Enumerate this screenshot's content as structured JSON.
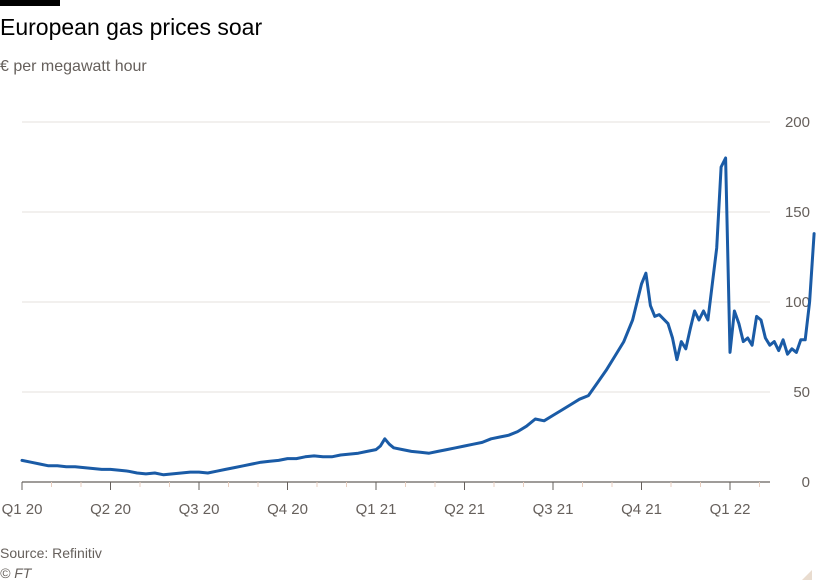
{
  "header": {
    "title": "European gas prices soar",
    "subtitle": "€ per megawatt hour"
  },
  "footer": {
    "source": "Source: Refinitiv",
    "credit": "© FT"
  },
  "colors": {
    "line": "#1a5ba6",
    "grid": "#e6e1dc",
    "axis": "#66605c",
    "ticks": "#e9cfc0"
  },
  "chart_data": {
    "type": "line",
    "title": "European gas prices soar",
    "ylabel": "€ per megawatt hour",
    "ylim": [
      0,
      200
    ],
    "yticks": [
      0,
      50,
      100,
      150,
      200
    ],
    "xlim": [
      0,
      9.35
    ],
    "xticks": [
      {
        "pos": 0,
        "label": "Q1 20"
      },
      {
        "pos": 1,
        "label": "Q2 20"
      },
      {
        "pos": 2,
        "label": "Q3 20"
      },
      {
        "pos": 3,
        "label": "Q4 20"
      },
      {
        "pos": 4,
        "label": "Q1 21"
      },
      {
        "pos": 5,
        "label": "Q2 21"
      },
      {
        "pos": 6,
        "label": "Q3 21"
      },
      {
        "pos": 7,
        "label": "Q4 21"
      },
      {
        "pos": 8,
        "label": "Q1 22"
      }
    ],
    "series": [
      {
        "name": "European gas price",
        "x": [
          0,
          0.1,
          0.2,
          0.3,
          0.4,
          0.5,
          0.6,
          0.7,
          0.8,
          0.9,
          1.0,
          1.1,
          1.2,
          1.3,
          1.4,
          1.5,
          1.6,
          1.7,
          1.8,
          1.9,
          2.0,
          2.1,
          2.2,
          2.3,
          2.4,
          2.5,
          2.6,
          2.7,
          2.8,
          2.9,
          3.0,
          3.1,
          3.2,
          3.3,
          3.4,
          3.5,
          3.6,
          3.7,
          3.8,
          3.9,
          4.0,
          4.05,
          4.1,
          4.15,
          4.2,
          4.3,
          4.4,
          4.5,
          4.6,
          4.7,
          4.8,
          4.9,
          5.0,
          5.1,
          5.2,
          5.3,
          5.4,
          5.5,
          5.6,
          5.7,
          5.8,
          5.9,
          6.0,
          6.1,
          6.2,
          6.3,
          6.4,
          6.5,
          6.6,
          6.7,
          6.8,
          6.9,
          7.0,
          7.05,
          7.1,
          7.15,
          7.2,
          7.3,
          7.35,
          7.4,
          7.45,
          7.5,
          7.55,
          7.6,
          7.65,
          7.7,
          7.75,
          7.8,
          7.85,
          7.9,
          7.95,
          8.0,
          8.05,
          8.1,
          8.15,
          8.2,
          8.25,
          8.3,
          8.35,
          8.4,
          8.45,
          8.5,
          8.55,
          8.6,
          8.65,
          8.7,
          8.75,
          8.8,
          8.85,
          8.9,
          8.95
        ],
        "values": [
          12,
          11,
          10,
          9,
          9,
          8.5,
          8.5,
          8,
          7.5,
          7,
          7,
          6.5,
          6,
          5,
          4.5,
          5,
          4,
          4.5,
          5,
          5.5,
          5.5,
          5,
          6,
          7,
          8,
          9,
          10,
          11,
          11.5,
          12,
          13,
          13,
          14,
          14.5,
          14,
          14,
          15,
          15.5,
          16,
          17,
          18,
          20,
          24,
          21,
          19,
          18,
          17,
          16.5,
          16,
          17,
          18,
          19,
          20,
          21,
          22,
          24,
          25,
          26,
          28,
          31,
          35,
          34,
          37,
          40,
          43,
          46,
          48,
          55,
          62,
          70,
          78,
          90,
          110,
          116,
          98,
          92,
          93,
          88,
          80,
          68,
          78,
          74,
          85,
          95,
          90,
          95,
          90,
          110,
          130,
          175,
          180,
          72,
          95,
          88,
          78,
          80,
          76,
          92,
          90,
          80,
          76,
          78,
          73,
          79,
          71,
          74,
          72,
          79,
          79,
          100,
          138
        ]
      }
    ]
  }
}
